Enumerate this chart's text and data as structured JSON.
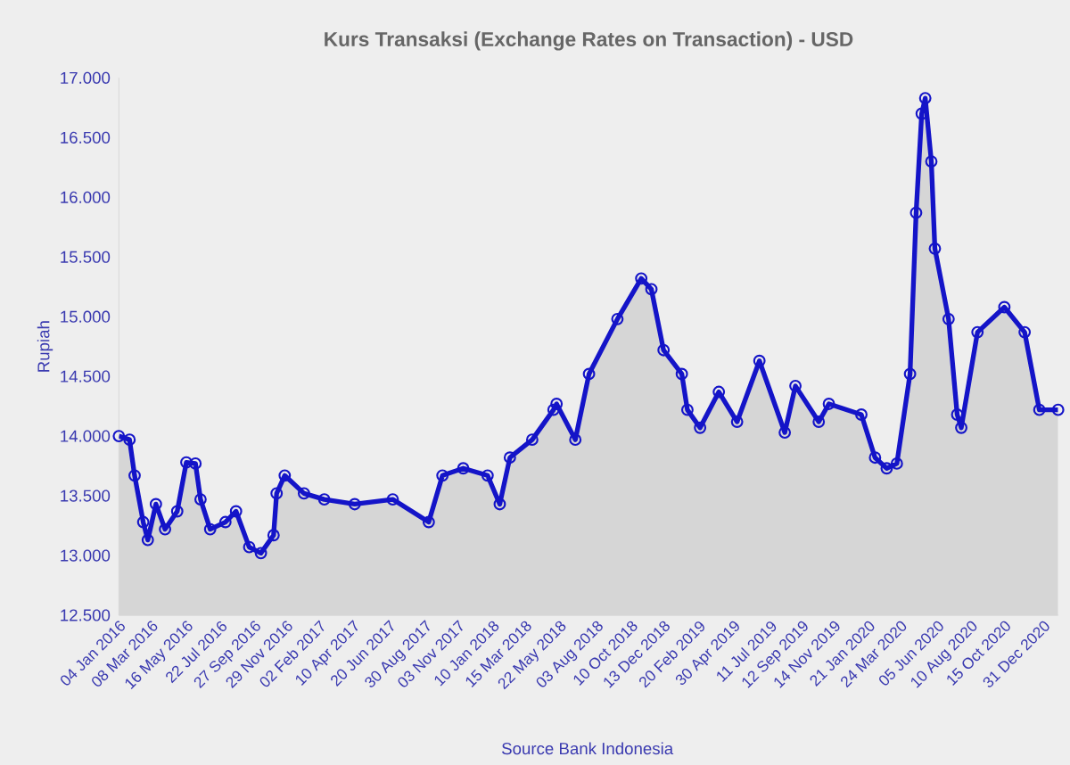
{
  "chart_data": {
    "type": "area",
    "title": "Kurs Transaksi (Exchange Rates on Transaction) - USD",
    "ylabel": "Rupiah",
    "annotations": [
      "Source Bank Indonesia"
    ],
    "color": "#1414c8",
    "marker": "circle",
    "line_style": "solid",
    "x": [
      "2016-01-04",
      "2016-01-25",
      "2016-02-04",
      "2016-02-21",
      "2016-03-01",
      "2016-03-17",
      "2016-04-04",
      "2016-04-28",
      "2016-05-16",
      "2016-06-03",
      "2016-06-13",
      "2016-07-02",
      "2016-08-01",
      "2016-08-22",
      "2016-09-17",
      "2016-10-10",
      "2016-11-04",
      "2016-11-10",
      "2016-11-26",
      "2017-01-03",
      "2017-02-12",
      "2017-04-13",
      "2017-06-27",
      "2017-09-06",
      "2017-10-03",
      "2017-11-13",
      "2017-12-31",
      "2018-01-24",
      "2018-02-13",
      "2018-03-29",
      "2018-05-10",
      "2018-05-16",
      "2018-06-22",
      "2018-07-19",
      "2018-09-13",
      "2018-10-30",
      "2018-11-19",
      "2018-12-13",
      "2019-01-18",
      "2019-01-29",
      "2019-02-23",
      "2019-04-01",
      "2019-05-07",
      "2019-06-20",
      "2019-08-09",
      "2019-08-30",
      "2019-10-15",
      "2019-11-04",
      "2020-01-07",
      "2020-02-03",
      "2020-02-26",
      "2020-03-17",
      "2020-04-12",
      "2020-04-24",
      "2020-05-05",
      "2020-05-12",
      "2020-05-24",
      "2020-05-31",
      "2020-06-27",
      "2020-07-14",
      "2020-07-22",
      "2020-08-23",
      "2020-10-15",
      "2020-11-24",
      "2020-12-23",
      "2021-01-29"
    ],
    "values": [
      14000,
      13970,
      13670,
      13280,
      13130,
      13430,
      13220,
      13370,
      13780,
      13770,
      13470,
      13220,
      13280,
      13370,
      13070,
      13020,
      13170,
      13520,
      13670,
      13520,
      13470,
      13430,
      13470,
      13280,
      13670,
      13730,
      13670,
      13430,
      13820,
      13970,
      14220,
      14270,
      13970,
      14520,
      14980,
      15320,
      15230,
      14720,
      14520,
      14220,
      14070,
      14370,
      14120,
      14630,
      14030,
      14420,
      14120,
      14270,
      14180,
      13820,
      13730,
      13770,
      14520,
      15870,
      16700,
      16830,
      16300,
      15570,
      14980,
      14180,
      14070,
      14870,
      15080,
      14870,
      14220,
      14220
    ],
    "xlim": [
      "2016-01-04",
      "2021-01-29"
    ],
    "xticks": [
      {
        "value": "2016-01-04",
        "label": "04 Jan 2016"
      },
      {
        "value": "2016-03-08",
        "label": "08 Mar 2016"
      },
      {
        "value": "2016-05-16",
        "label": "16 May 2016"
      },
      {
        "value": "2016-07-22",
        "label": "22 Jul 2016"
      },
      {
        "value": "2016-09-27",
        "label": "27 Sep 2016"
      },
      {
        "value": "2016-11-29",
        "label": "29 Nov 2016"
      },
      {
        "value": "2017-02-02",
        "label": "02 Feb 2017"
      },
      {
        "value": "2017-04-10",
        "label": "10 Apr 2017"
      },
      {
        "value": "2017-06-20",
        "label": "20 Jun 2017"
      },
      {
        "value": "2017-08-30",
        "label": "30 Aug 2017"
      },
      {
        "value": "2017-11-03",
        "label": "03 Nov 2017"
      },
      {
        "value": "2018-01-10",
        "label": "10 Jan 2018"
      },
      {
        "value": "2018-03-15",
        "label": "15 Mar 2018"
      },
      {
        "value": "2018-05-22",
        "label": "22 May 2018"
      },
      {
        "value": "2018-08-03",
        "label": "03 Aug 2018"
      },
      {
        "value": "2018-10-10",
        "label": "10 Oct 2018"
      },
      {
        "value": "2018-12-13",
        "label": "13 Dec 2018"
      },
      {
        "value": "2019-02-20",
        "label": "20 Feb 2019"
      },
      {
        "value": "2019-04-30",
        "label": "30 Apr 2019"
      },
      {
        "value": "2019-07-11",
        "label": "11 Jul 2019"
      },
      {
        "value": "2019-09-12",
        "label": "12 Sep 2019"
      },
      {
        "value": "2019-11-14",
        "label": "14 Nov 2019"
      },
      {
        "value": "2020-01-21",
        "label": "21 Jan 2020"
      },
      {
        "value": "2020-03-24",
        "label": "24 Mar 2020"
      },
      {
        "value": "2020-06-05",
        "label": "05 Jun 2020"
      },
      {
        "value": "2020-08-10",
        "label": "10 Aug 2020"
      },
      {
        "value": "2020-10-15",
        "label": "15 Oct 2020"
      },
      {
        "value": "2020-12-31",
        "label": "31 Dec 2020"
      }
    ],
    "ylim": [
      12500,
      17000
    ],
    "yticks": [
      {
        "value": 12500,
        "label": "12.500"
      },
      {
        "value": 13000,
        "label": "13.000"
      },
      {
        "value": 13500,
        "label": "13.500"
      },
      {
        "value": 14000,
        "label": "14.000"
      },
      {
        "value": 14500,
        "label": "14.500"
      },
      {
        "value": 15000,
        "label": "15.000"
      },
      {
        "value": 15500,
        "label": "15.500"
      },
      {
        "value": 16000,
        "label": "16.000"
      },
      {
        "value": 16500,
        "label": "16.500"
      },
      {
        "value": 17000,
        "label": "17.000"
      }
    ]
  }
}
